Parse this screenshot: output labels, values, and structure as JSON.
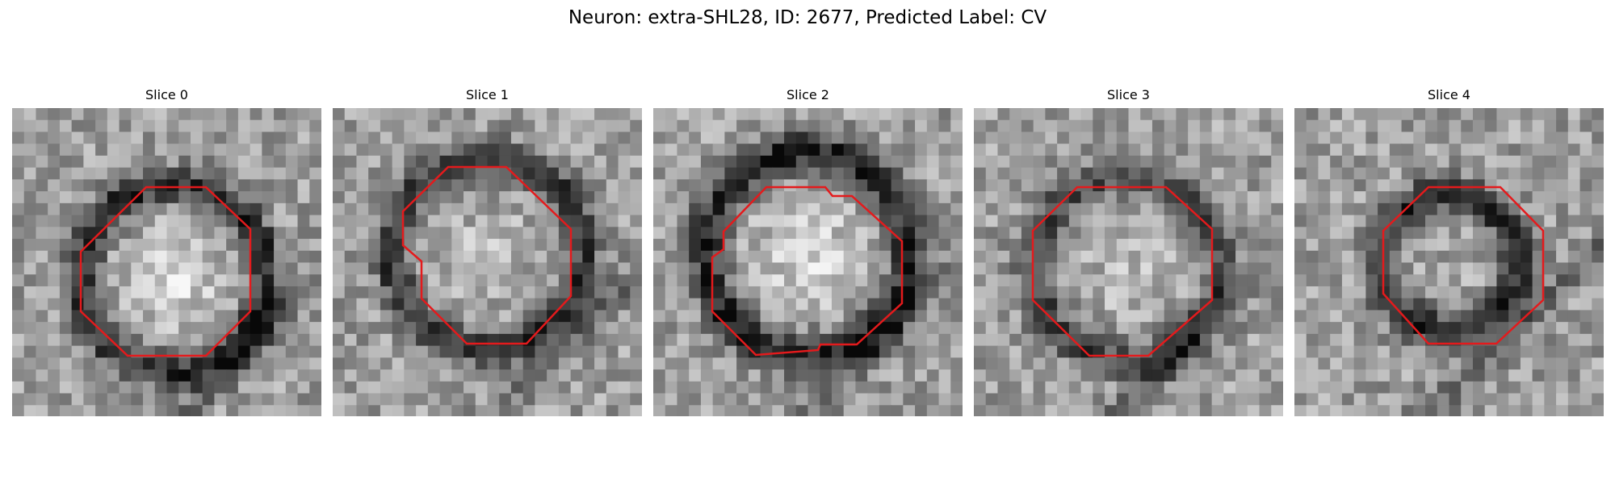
{
  "figure": {
    "title": "Neuron: extra-SHL28, ID: 2677, Predicted Label: CV"
  },
  "panels": [
    {
      "title": "Slice 0"
    },
    {
      "title": "Slice 1"
    },
    {
      "title": "Slice 2"
    },
    {
      "title": "Slice 3"
    },
    {
      "title": "Slice 4"
    }
  ],
  "colors": {
    "contour": "#e41a1c",
    "background": "#ffffff"
  }
}
